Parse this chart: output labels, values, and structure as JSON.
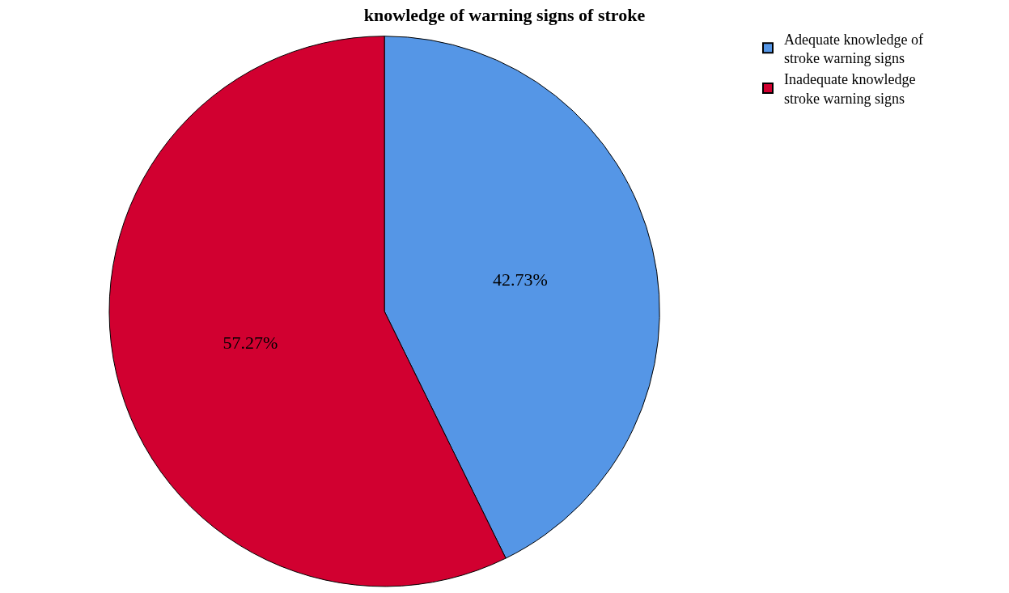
{
  "chart_data": {
    "type": "pie",
    "title": "knowledge of warning signs of stroke",
    "categories": [
      "Adequate knowledge of\nstroke warning signs",
      "Inadequate knowledge\nstroke warning signs"
    ],
    "values": [
      42.73,
      57.27
    ],
    "colors": [
      "#5596e6",
      "#d10030"
    ],
    "value_labels": [
      "42.73%",
      "57.27%"
    ],
    "legend": "top right"
  }
}
